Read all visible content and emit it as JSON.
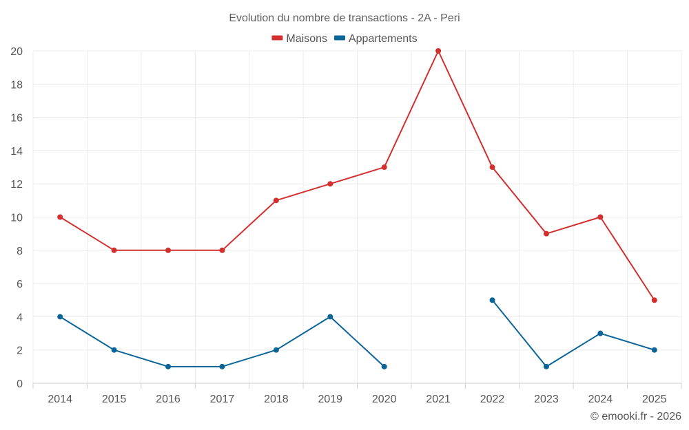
{
  "chart_data": {
    "type": "line",
    "title": "Evolution du nombre de transactions - 2A - Peri",
    "xlabel": "",
    "ylabel": "",
    "categories": [
      "2014",
      "2015",
      "2016",
      "2017",
      "2018",
      "2019",
      "2020",
      "2021",
      "2022",
      "2023",
      "2024",
      "2025"
    ],
    "ylim": [
      0,
      20
    ],
    "yticks": [
      "0",
      "2",
      "4",
      "6",
      "8",
      "10",
      "12",
      "14",
      "16",
      "18",
      "20"
    ],
    "grid": true,
    "legend_position": "top-center",
    "series": [
      {
        "name": "Maisons",
        "color": "#d32f2f",
        "values": [
          10,
          8,
          8,
          8,
          11,
          12,
          13,
          20,
          13,
          9,
          10,
          5
        ]
      },
      {
        "name": "Appartements",
        "color": "#0b6598",
        "values": [
          4,
          2,
          1,
          1,
          2,
          4,
          1,
          null,
          5,
          1,
          3,
          2
        ]
      }
    ],
    "credit": "© emooki.fr - 2026"
  }
}
